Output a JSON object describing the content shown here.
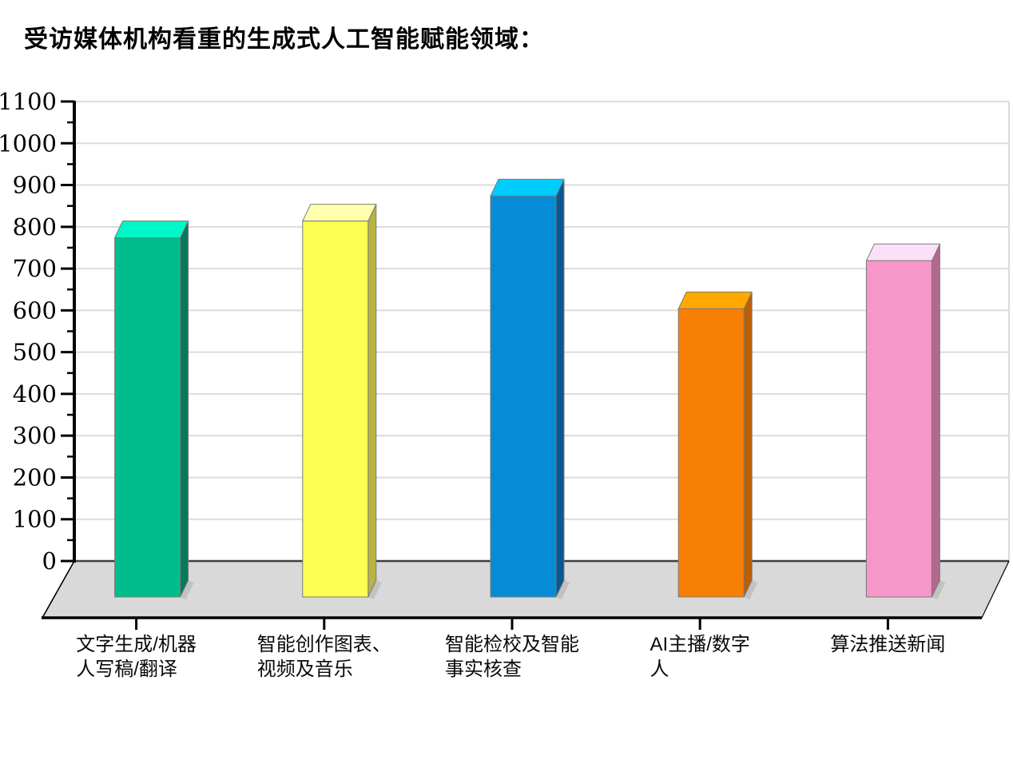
{
  "title": "受访媒体机构看重的生成式人工智能赋能领域：",
  "chart_data": {
    "type": "bar",
    "style": "3d-column",
    "title": "受访媒体机构看重的生成式人工智能赋能领域：",
    "categories": [
      "文字生成/机器人写稿/翻译",
      "智能创作图表、视频及音乐",
      "智能检校及智能事实核查",
      "AI主播/数字人",
      "算法推送新闻"
    ],
    "category_lines": [
      [
        "文字生成/机器",
        "人写稿/翻译"
      ],
      [
        "智能创作图表、",
        "视频及音乐"
      ],
      [
        "智能检校及智能",
        "事实核查"
      ],
      [
        "AI主播/数字",
        "人"
      ],
      [
        "算法推送新闻"
      ]
    ],
    "values": [
      770,
      810,
      870,
      600,
      715
    ],
    "ylim": [
      0,
      1100
    ],
    "ytick_step": 100,
    "ytick_minor_step": 50,
    "ytick_labels": [
      "0",
      "100",
      "200",
      "300",
      "400",
      "500",
      "600",
      "700",
      "800",
      "900",
      "1000",
      "1100"
    ],
    "grid": true,
    "legend": false,
    "xlabel": "",
    "ylabel": "",
    "bar_colors": [
      {
        "name": "green",
        "front": "#00BD8B",
        "top": "#00F7C8",
        "side": "#047A5C"
      },
      {
        "name": "yellow",
        "front": "#FFFF52",
        "top": "#FFFFAD",
        "side": "#B7B442"
      },
      {
        "name": "blue",
        "front": "#068CD6",
        "top": "#00CCFE",
        "side": "#075A90"
      },
      {
        "name": "orange",
        "front": "#F87F05",
        "top": "#FFA900",
        "side": "#BB5E06"
      },
      {
        "name": "pink",
        "front": "#F796C8",
        "top": "#FBE0F7",
        "side": "#B4678F"
      }
    ],
    "floor_color": "#D9D9D9",
    "shadow_color": "#C2C2C2",
    "gridline_color": "#DCDCDC",
    "axis_color": "#000000",
    "zero_line_color": "#3F3F3F",
    "background_color": "#FFFFFF"
  }
}
